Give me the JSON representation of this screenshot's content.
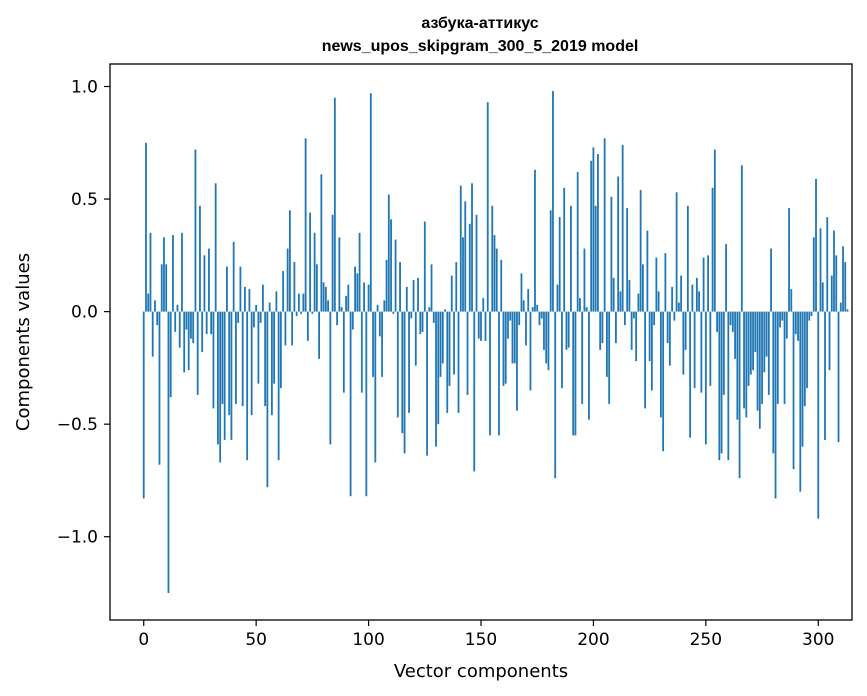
{
  "chart_data": {
    "type": "bar",
    "title_lines": [
      "азбука-аттикус",
      "news_upos_skipgram_300_5_2019 model"
    ],
    "xlabel": "Vector components",
    "ylabel": "Components values",
    "xlim": [
      -15,
      315
    ],
    "ylim": [
      -1.37,
      1.1
    ],
    "xticks": [
      0,
      50,
      100,
      150,
      200,
      250,
      300
    ],
    "xtick_labels": [
      "0",
      "50",
      "100",
      "150",
      "200",
      "250",
      "300"
    ],
    "yticks": [
      1.0,
      0.5,
      0.0,
      -0.5,
      -1.0
    ],
    "ytick_labels": [
      "1.0",
      "0.5",
      "0.0",
      "−0.5",
      "−1.0"
    ],
    "bar_color": "#1f77b4",
    "series": [
      {
        "name": "азбука-аттикус",
        "x_start": 0,
        "values": [
          -0.83,
          0.75,
          0.08,
          0.35,
          -0.2,
          0.05,
          -0.06,
          -0.68,
          0.21,
          0.33,
          0.21,
          -1.25,
          -0.38,
          0.34,
          -0.09,
          0.03,
          -0.16,
          0.35,
          -0.27,
          -0.08,
          -0.26,
          -0.12,
          -0.14,
          0.72,
          -0.37,
          0.47,
          -0.18,
          0.25,
          -0.1,
          0.28,
          -0.1,
          -0.43,
          0.57,
          -0.59,
          -0.67,
          -0.41,
          -0.57,
          0.2,
          -0.46,
          -0.57,
          0.31,
          -0.41,
          -0.05,
          0.2,
          -0.42,
          0.11,
          -0.66,
          0.1,
          -0.46,
          -0.07,
          0.03,
          -0.32,
          -0.05,
          0.12,
          -0.42,
          -0.78,
          0.04,
          -0.46,
          -0.32,
          0.09,
          -0.66,
          -0.34,
          0.18,
          -0.15,
          0.28,
          0.45,
          -0.15,
          0.22,
          -0.02,
          0.08,
          -0.01,
          0.08,
          0.77,
          -0.13,
          0.44,
          -0.01,
          0.35,
          0.21,
          -0.21,
          0.61,
          0.13,
          0.11,
          0.05,
          -0.59,
          0.43,
          0.95,
          -0.06,
          0.33,
          0.02,
          -0.36,
          0.07,
          0.12,
          -0.82,
          -0.08,
          0.2,
          0.17,
          0.35,
          -0.36,
          0.13,
          -0.82,
          0.12,
          0.97,
          -0.29,
          -0.67,
          0.03,
          -0.11,
          -0.29,
          0.05,
          0.23,
          0.52,
          0.41,
          -0.01,
          0.32,
          -0.47,
          0.22,
          -0.54,
          -0.63,
          0.11,
          -0.45,
          -0.03,
          0.14,
          -0.24,
          0.15,
          -0.1,
          -0.09,
          0.4,
          -0.64,
          0.02,
          0.21,
          -0.05,
          -0.6,
          -0.5,
          -0.29,
          -0.23,
          0.01,
          -0.45,
          -0.33,
          0.16,
          -0.28,
          0.22,
          -0.45,
          0.56,
          0.33,
          0.49,
          -0.37,
          0.39,
          0.57,
          -0.71,
          0.43,
          -0.12,
          -0.13,
          0.06,
          -0.13,
          0.93,
          -0.55,
          0.47,
          0.34,
          0.28,
          -0.55,
          0.23,
          -0.33,
          -0.32,
          -0.12,
          -0.04,
          -0.23,
          -0.23,
          -0.44,
          -0.06,
          0.17,
          0.05,
          -0.15,
          0.1,
          -0.35,
          0.02,
          0.63,
          0.03,
          -0.06,
          -0.03,
          -0.17,
          -0.23,
          -0.26,
          0.45,
          0.98,
          -0.74,
          0.12,
          0.42,
          -0.34,
          0.55,
          -0.17,
          -0.16,
          0.47,
          -0.55,
          -0.55,
          0.62,
          0.06,
          -0.41,
          0.28,
          0.02,
          -0.48,
          0.67,
          0.73,
          0.47,
          0.7,
          -0.17,
          -0.14,
          0.77,
          -0.29,
          -0.41,
          0.51,
          0.15,
          -0.14,
          0.6,
          0.09,
          0.74,
          -0.06,
          0.46,
          0.14,
          -0.17,
          -0.03,
          -0.22,
          0.08,
          0.54,
          0.21,
          -0.43,
          0.36,
          -0.22,
          -0.35,
          -0.06,
          0.24,
          0.09,
          -0.47,
          -0.62,
          0.26,
          -0.14,
          -0.24,
          0.11,
          -0.04,
          0.53,
          0.04,
          0.16,
          -0.28,
          -0.17,
          0.47,
          -0.56,
          0.12,
          -0.34,
          0.15,
          0.09,
          -0.36,
          0.24,
          -0.59,
          0.25,
          -0.33,
          0.55,
          0.72,
          -0.09,
          -0.66,
          -0.63,
          -0.37,
          0.3,
          -0.66,
          -0.06,
          -0.09,
          -0.21,
          -0.48,
          -0.74,
          0.65,
          -0.43,
          -0.47,
          -0.33,
          -0.28,
          -0.26,
          -0.18,
          -0.44,
          -0.52,
          -0.41,
          -0.27,
          -0.2,
          -0.37,
          0.28,
          -0.63,
          -0.83,
          -0.41,
          -0.07,
          -0.04,
          -0.41,
          -0.12,
          0.46,
          0.1,
          -0.7,
          -0.1,
          -0.13,
          -0.8,
          -0.6,
          -0.42,
          -0.34,
          -0.04,
          -0.02,
          0.33,
          0.59,
          -0.92,
          0.37,
          0.13,
          -0.57,
          0.42,
          -0.26,
          0.16,
          0.36,
          0.25,
          -0.58,
          0.04,
          0.29,
          0.22,
          0.01
        ]
      }
    ]
  }
}
